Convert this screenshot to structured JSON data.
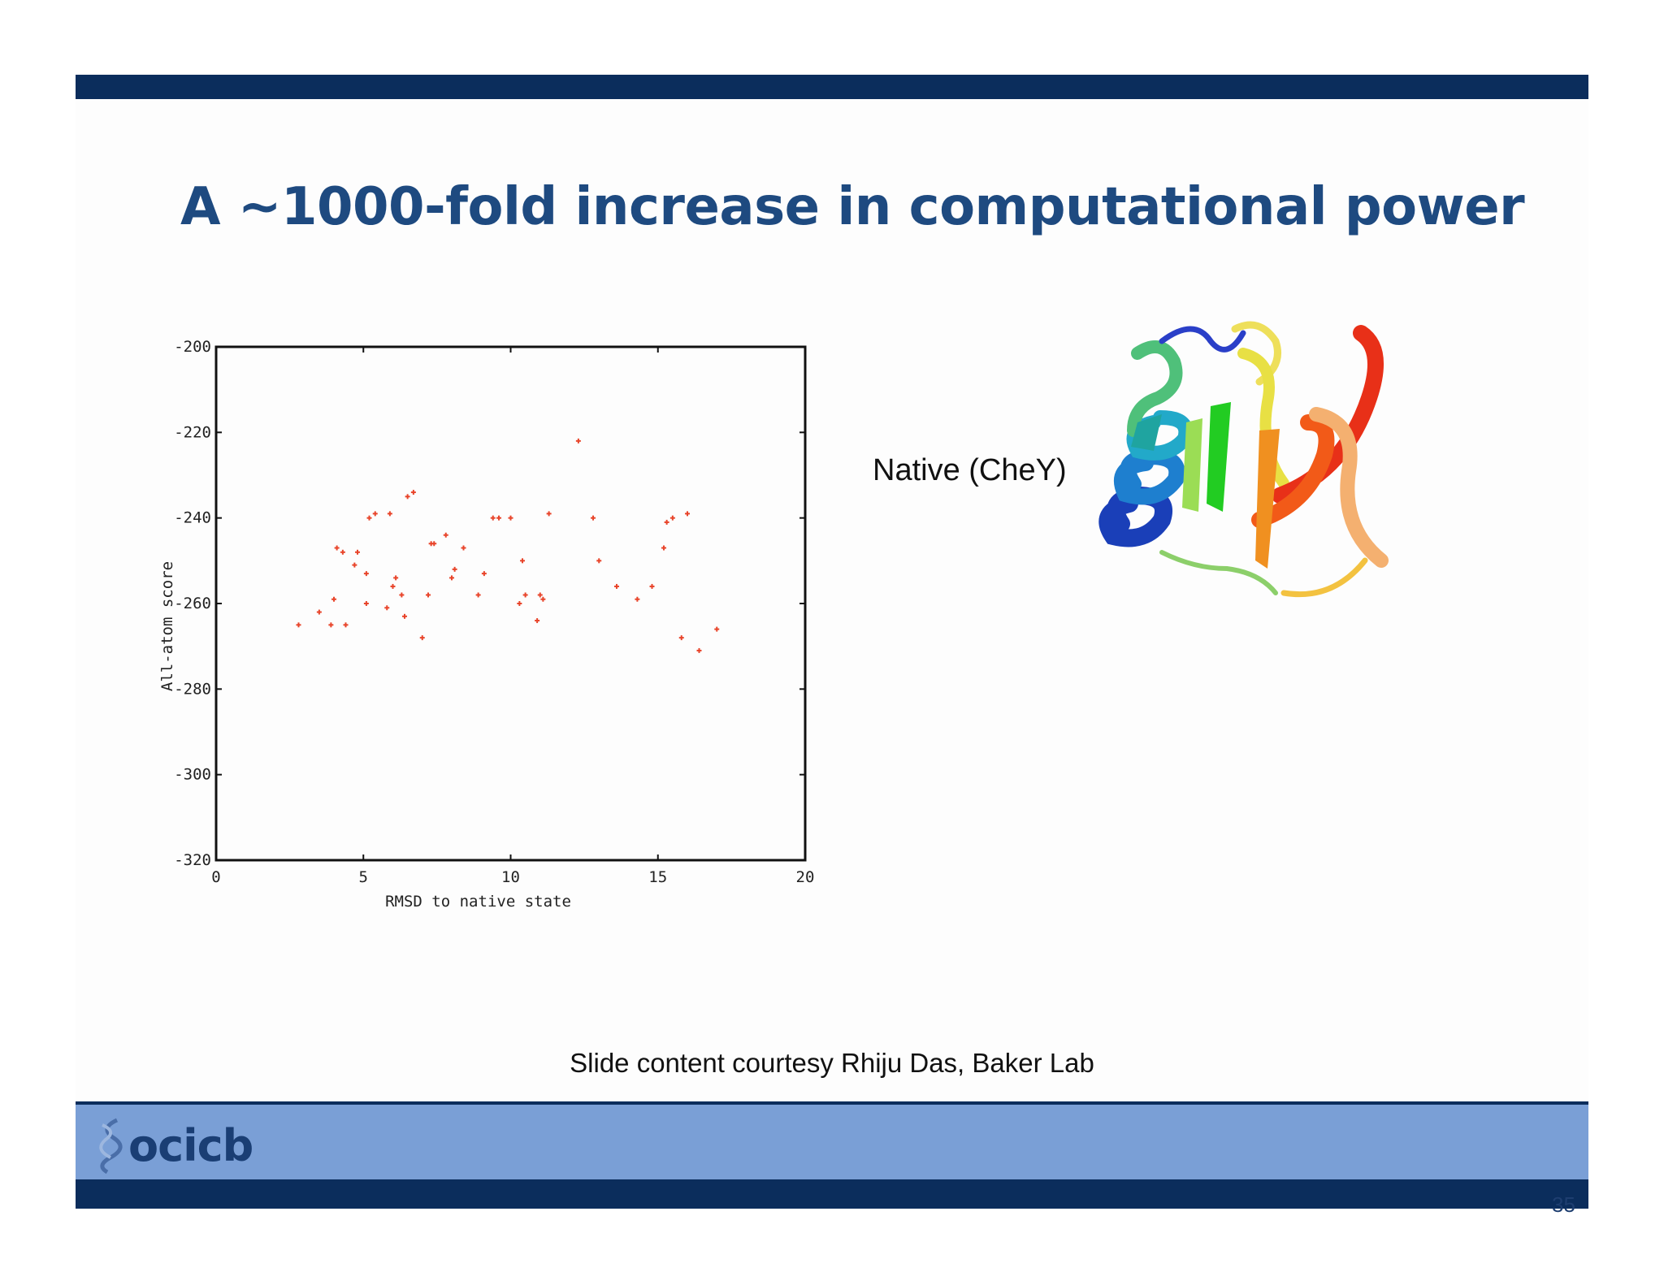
{
  "slide": {
    "title": "A ~1000-fold increase in computational power",
    "native_label": "Native (CheY)",
    "credit": "Slide content courtesy Rhiju Das, Baker Lab",
    "logo_text": "ocicb",
    "page_number": "35"
  },
  "colors": {
    "dark_bar": "#0b2d5c",
    "footer_band": "#7a9fd6",
    "title": "#1e4a80",
    "points": "#e8442a"
  },
  "chart_data": {
    "type": "scatter",
    "xlabel": "RMSD to native state",
    "ylabel": "All-atom score",
    "xlim": [
      0,
      20
    ],
    "ylim": [
      -320,
      -200
    ],
    "xticks": [
      0,
      5,
      10,
      15,
      20
    ],
    "yticks": [
      -200,
      -220,
      -240,
      -260,
      -280,
      -300,
      -320
    ],
    "points": [
      [
        2.8,
        -265
      ],
      [
        3.5,
        -262
      ],
      [
        3.9,
        -265
      ],
      [
        4.0,
        -259
      ],
      [
        4.1,
        -247
      ],
      [
        4.3,
        -248
      ],
      [
        4.4,
        -265
      ],
      [
        4.7,
        -251
      ],
      [
        4.8,
        -248
      ],
      [
        5.1,
        -253
      ],
      [
        5.1,
        -260
      ],
      [
        5.2,
        -240
      ],
      [
        5.4,
        -239
      ],
      [
        5.8,
        -261
      ],
      [
        5.9,
        -239
      ],
      [
        6.0,
        -256
      ],
      [
        6.1,
        -254
      ],
      [
        6.3,
        -258
      ],
      [
        6.4,
        -263
      ],
      [
        6.5,
        -235
      ],
      [
        6.7,
        -234
      ],
      [
        7.0,
        -268
      ],
      [
        7.2,
        -258
      ],
      [
        7.3,
        -246
      ],
      [
        7.4,
        -246
      ],
      [
        7.8,
        -244
      ],
      [
        8.0,
        -254
      ],
      [
        8.1,
        -252
      ],
      [
        8.4,
        -247
      ],
      [
        8.9,
        -258
      ],
      [
        9.1,
        -253
      ],
      [
        9.4,
        -240
      ],
      [
        9.6,
        -240
      ],
      [
        10.0,
        -240
      ],
      [
        10.3,
        -260
      ],
      [
        10.4,
        -250
      ],
      [
        10.5,
        -258
      ],
      [
        10.9,
        -264
      ],
      [
        11.0,
        -258
      ],
      [
        11.1,
        -259
      ],
      [
        11.3,
        -239
      ],
      [
        12.3,
        -222
      ],
      [
        12.8,
        -240
      ],
      [
        13.0,
        -250
      ],
      [
        13.6,
        -256
      ],
      [
        14.3,
        -259
      ],
      [
        14.8,
        -256
      ],
      [
        15.2,
        -247
      ],
      [
        15.3,
        -241
      ],
      [
        15.5,
        -240
      ],
      [
        15.8,
        -268
      ],
      [
        16.0,
        -239
      ],
      [
        16.4,
        -271
      ],
      [
        17.0,
        -266
      ]
    ],
    "grid": false
  }
}
